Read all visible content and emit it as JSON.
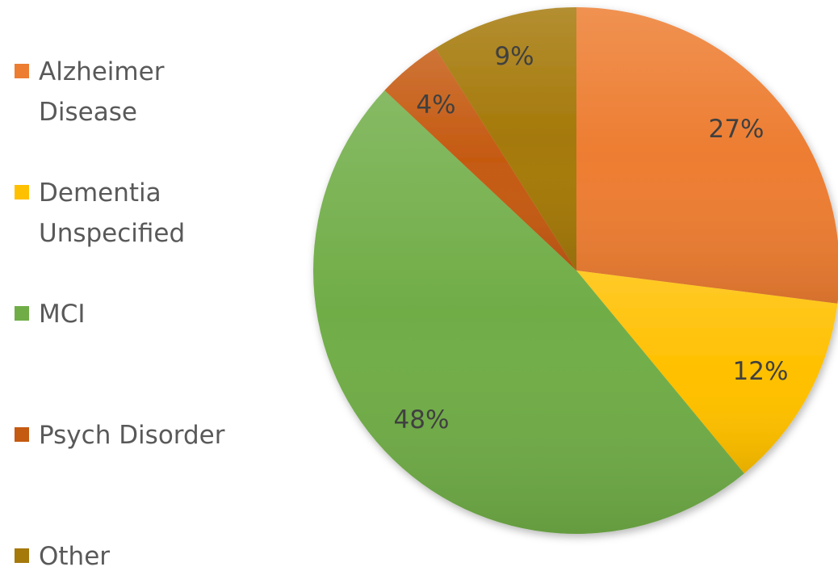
{
  "chart_data": {
    "type": "pie",
    "title": "",
    "start_angle_deg": 0,
    "direction": "clockwise",
    "legend_position": "left",
    "slices": [
      {
        "name": "Alzheimer Disease",
        "legend_lines": [
          "Alzheimer",
          "Disease"
        ],
        "value": 27,
        "label": "27%",
        "color": "#ED7D31"
      },
      {
        "name": "Dementia Unspecified",
        "legend_lines": [
          "Dementia",
          "Unspecified"
        ],
        "value": 12,
        "label": "12%",
        "color": "#FFC000"
      },
      {
        "name": "MCI",
        "legend_lines": [
          "MCI"
        ],
        "value": 48,
        "label": "48%",
        "color": "#70AD47"
      },
      {
        "name": "Psych Disorder",
        "legend_lines": [
          "Psych Disorder"
        ],
        "value": 4,
        "label": "4%",
        "color": "#C55A11"
      },
      {
        "name": "Other",
        "legend_lines": [
          "Other"
        ],
        "value": 9,
        "label": "9%",
        "color": "#A5790A"
      }
    ]
  }
}
